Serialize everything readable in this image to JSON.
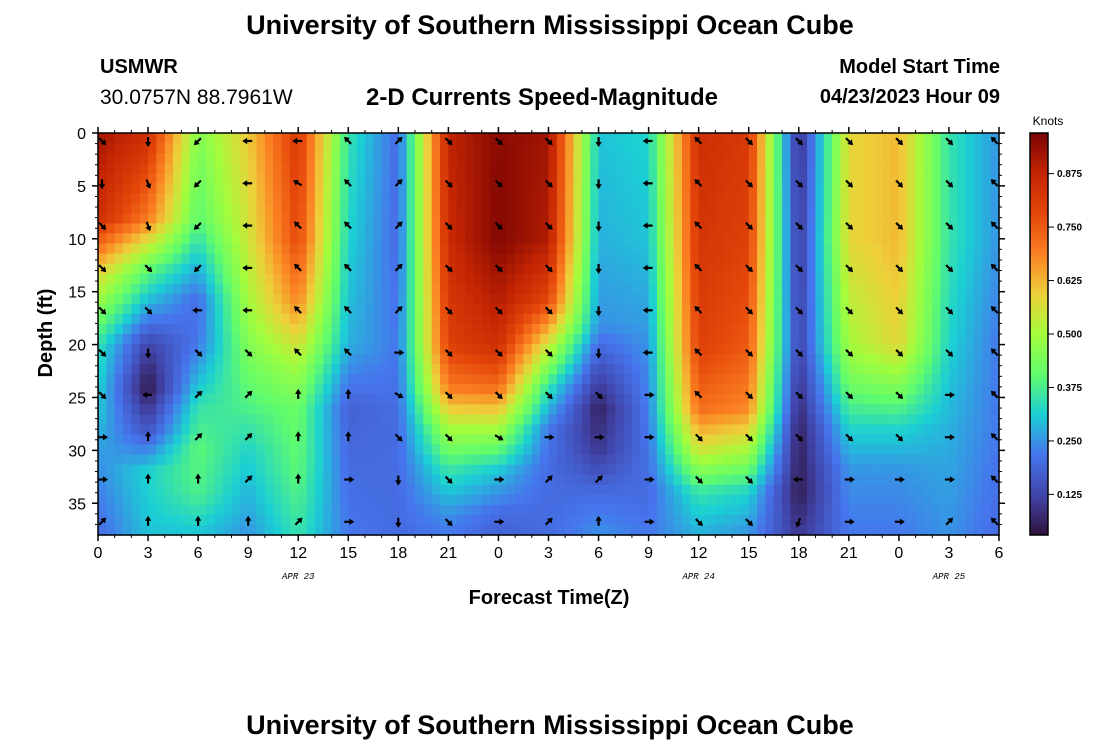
{
  "header": {
    "title": "University of Southern Mississippi Ocean Cube",
    "station": "USMWR",
    "coords": "30.0757N  88.7961W",
    "subtitle": "2-D Currents Speed-Magnitude",
    "model_start_label": "Model Start Time",
    "model_start_value": "04/23/2023 Hour 09"
  },
  "footer": {
    "title": "University of Southern Mississippi Ocean Cube"
  },
  "chart_data": {
    "type": "heatmap",
    "title": "2-D Currents Speed-Magnitude",
    "xlabel": "Forecast Time(Z)",
    "ylabel": "Depth (ft)",
    "x_tick_labels": [
      "0",
      "3",
      "6",
      "9",
      "12",
      "15",
      "18",
      "21",
      "0",
      "3",
      "6",
      "9",
      "12",
      "15",
      "18",
      "21",
      "0",
      "3",
      "6"
    ],
    "x_range_hours": [
      0,
      54
    ],
    "date_labels": [
      {
        "label": "APR 23",
        "hour": 12
      },
      {
        "label": "APR 24",
        "hour": 36
      },
      {
        "label": "APR 25",
        "hour": 51
      }
    ],
    "y_ticks": [
      0,
      5,
      10,
      15,
      20,
      25,
      30,
      35
    ],
    "ylim": [
      0,
      38
    ],
    "colorbar": {
      "label": "Knots",
      "ticks": [
        "0.875",
        "0.750",
        "0.625",
        "0.500",
        "0.375",
        "0.250",
        "0.125"
      ],
      "tick_values": [
        0.875,
        0.75,
        0.625,
        0.5,
        0.375,
        0.25,
        0.125
      ],
      "range": [
        0.03,
        0.97
      ]
    },
    "columns": [
      {
        "hour": 0,
        "profile": [
          [
            0,
            0.92
          ],
          [
            8,
            0.85
          ],
          [
            14,
            0.55
          ],
          [
            20,
            0.35
          ],
          [
            27,
            0.3
          ],
          [
            31,
            0.25
          ],
          [
            38,
            0.2
          ]
        ]
      },
      {
        "hour": 3,
        "profile": [
          [
            0,
            0.85
          ],
          [
            8,
            0.7
          ],
          [
            13,
            0.4
          ],
          [
            17,
            0.25
          ],
          [
            20,
            0.12
          ],
          [
            24,
            0.04
          ],
          [
            28,
            0.15
          ],
          [
            32,
            0.32
          ],
          [
            38,
            0.3
          ]
        ]
      },
      {
        "hour": 6,
        "profile": [
          [
            0,
            0.45
          ],
          [
            8,
            0.4
          ],
          [
            12,
            0.3
          ],
          [
            16,
            0.2
          ],
          [
            20,
            0.22
          ],
          [
            26,
            0.35
          ],
          [
            30,
            0.4
          ],
          [
            34,
            0.38
          ],
          [
            38,
            0.3
          ]
        ]
      },
      {
        "hour": 9,
        "profile": [
          [
            0,
            0.6
          ],
          [
            10,
            0.55
          ],
          [
            16,
            0.5
          ],
          [
            20,
            0.45
          ],
          [
            26,
            0.38
          ],
          [
            30,
            0.32
          ],
          [
            38,
            0.25
          ]
        ]
      },
      {
        "hour": 12,
        "profile": [
          [
            0,
            0.82
          ],
          [
            10,
            0.78
          ],
          [
            16,
            0.68
          ],
          [
            22,
            0.5
          ],
          [
            26,
            0.42
          ],
          [
            32,
            0.4
          ],
          [
            38,
            0.35
          ]
        ]
      },
      {
        "hour": 15,
        "profile": [
          [
            0,
            0.35
          ],
          [
            10,
            0.32
          ],
          [
            20,
            0.28
          ],
          [
            26,
            0.18
          ],
          [
            32,
            0.2
          ],
          [
            38,
            0.22
          ]
        ]
      },
      {
        "hour": 18,
        "profile": [
          [
            0,
            0.2
          ],
          [
            10,
            0.2
          ],
          [
            20,
            0.22
          ],
          [
            28,
            0.2
          ],
          [
            38,
            0.2
          ]
        ]
      },
      {
        "hour": 21,
        "profile": [
          [
            0,
            0.88
          ],
          [
            10,
            0.86
          ],
          [
            20,
            0.8
          ],
          [
            24,
            0.7
          ],
          [
            28,
            0.5
          ],
          [
            32,
            0.35
          ],
          [
            36,
            0.25
          ],
          [
            38,
            0.22
          ]
        ]
      },
      {
        "hour": 24,
        "profile": [
          [
            0,
            0.95
          ],
          [
            10,
            0.96
          ],
          [
            20,
            0.85
          ],
          [
            24,
            0.72
          ],
          [
            28,
            0.5
          ],
          [
            32,
            0.3
          ],
          [
            36,
            0.2
          ],
          [
            38,
            0.18
          ]
        ]
      },
      {
        "hour": 27,
        "profile": [
          [
            0,
            0.92
          ],
          [
            10,
            0.9
          ],
          [
            16,
            0.78
          ],
          [
            20,
            0.55
          ],
          [
            24,
            0.35
          ],
          [
            28,
            0.22
          ],
          [
            32,
            0.2
          ],
          [
            38,
            0.2
          ]
        ]
      },
      {
        "hour": 30,
        "profile": [
          [
            0,
            0.3
          ],
          [
            10,
            0.28
          ],
          [
            18,
            0.25
          ],
          [
            22,
            0.15
          ],
          [
            26,
            0.06
          ],
          [
            30,
            0.1
          ],
          [
            34,
            0.2
          ],
          [
            38,
            0.25
          ]
        ]
      },
      {
        "hour": 33,
        "profile": [
          [
            0,
            0.32
          ],
          [
            10,
            0.3
          ],
          [
            20,
            0.25
          ],
          [
            28,
            0.22
          ],
          [
            34,
            0.2
          ],
          [
            38,
            0.22
          ]
        ]
      },
      {
        "hour": 36,
        "profile": [
          [
            0,
            0.85
          ],
          [
            10,
            0.83
          ],
          [
            20,
            0.8
          ],
          [
            26,
            0.72
          ],
          [
            30,
            0.55
          ],
          [
            34,
            0.35
          ],
          [
            38,
            0.28
          ]
        ]
      },
      {
        "hour": 39,
        "profile": [
          [
            0,
            0.82
          ],
          [
            10,
            0.8
          ],
          [
            20,
            0.75
          ],
          [
            26,
            0.68
          ],
          [
            30,
            0.5
          ],
          [
            34,
            0.32
          ],
          [
            38,
            0.25
          ]
        ]
      },
      {
        "hour": 42,
        "profile": [
          [
            0,
            0.08
          ],
          [
            10,
            0.1
          ],
          [
            20,
            0.12
          ],
          [
            28,
            0.06
          ],
          [
            34,
            0.05
          ],
          [
            38,
            0.1
          ]
        ]
      },
      {
        "hour": 45,
        "profile": [
          [
            0,
            0.58
          ],
          [
            10,
            0.58
          ],
          [
            20,
            0.5
          ],
          [
            24,
            0.42
          ],
          [
            28,
            0.32
          ],
          [
            32,
            0.25
          ],
          [
            38,
            0.22
          ]
        ]
      },
      {
        "hour": 48,
        "profile": [
          [
            0,
            0.62
          ],
          [
            10,
            0.62
          ],
          [
            20,
            0.58
          ],
          [
            24,
            0.45
          ],
          [
            28,
            0.32
          ],
          [
            32,
            0.25
          ],
          [
            38,
            0.22
          ]
        ]
      },
      {
        "hour": 51,
        "profile": [
          [
            0,
            0.35
          ],
          [
            10,
            0.35
          ],
          [
            20,
            0.32
          ],
          [
            28,
            0.28
          ],
          [
            38,
            0.25
          ]
        ]
      },
      {
        "hour": 54,
        "profile": [
          [
            0,
            0.25
          ],
          [
            10,
            0.25
          ],
          [
            20,
            0.22
          ],
          [
            28,
            0.22
          ],
          [
            38,
            0.2
          ]
        ]
      }
    ],
    "vector_depths_ft": [
      0,
      4,
      8,
      12,
      16,
      20,
      24,
      28,
      32,
      36
    ],
    "vector_directions_deg": [
      [
        135,
        180,
        135,
        135,
        135,
        135,
        135,
        90,
        90,
        45
      ],
      [
        180,
        160,
        160,
        135,
        135,
        180,
        270,
        0,
        0,
        0
      ],
      [
        225,
        225,
        225,
        225,
        270,
        135,
        45,
        45,
        0,
        0
      ],
      [
        270,
        270,
        270,
        270,
        270,
        135,
        45,
        45,
        45,
        0
      ],
      [
        270,
        300,
        315,
        315,
        315,
        315,
        0,
        0,
        0,
        45
      ],
      [
        315,
        315,
        315,
        315,
        315,
        315,
        0,
        0,
        90,
        90
      ],
      [
        45,
        45,
        45,
        45,
        45,
        90,
        120,
        135,
        180,
        180
      ],
      [
        135,
        135,
        135,
        135,
        135,
        135,
        135,
        135,
        135,
        135
      ],
      [
        135,
        135,
        135,
        135,
        135,
        135,
        135,
        120,
        90,
        90
      ],
      [
        135,
        135,
        135,
        135,
        135,
        135,
        135,
        90,
        45,
        45
      ],
      [
        180,
        180,
        180,
        180,
        180,
        180,
        135,
        90,
        45,
        0
      ],
      [
        270,
        270,
        270,
        270,
        270,
        270,
        90,
        90,
        90,
        90
      ],
      [
        315,
        315,
        315,
        315,
        315,
        315,
        315,
        135,
        135,
        135
      ],
      [
        135,
        135,
        135,
        135,
        135,
        135,
        135,
        135,
        135,
        135
      ],
      [
        135,
        135,
        135,
        135,
        135,
        135,
        135,
        135,
        270,
        200
      ],
      [
        135,
        135,
        135,
        135,
        135,
        135,
        135,
        135,
        90,
        90
      ],
      [
        135,
        135,
        135,
        135,
        135,
        135,
        135,
        135,
        90,
        90
      ],
      [
        135,
        135,
        135,
        135,
        135,
        135,
        90,
        90,
        90,
        45
      ],
      [
        315,
        315,
        315,
        315,
        315,
        315,
        315,
        315,
        315,
        315
      ]
    ]
  }
}
